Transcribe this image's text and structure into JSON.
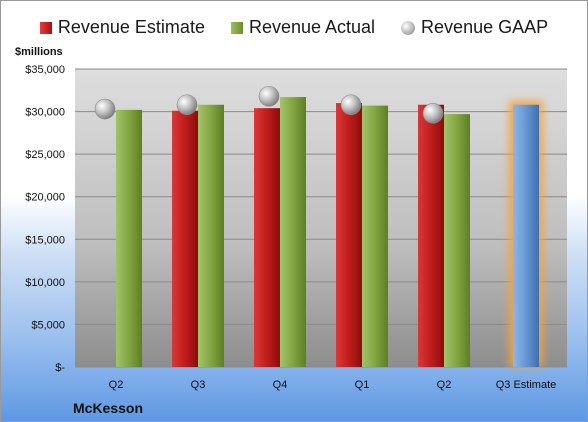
{
  "legend": {
    "estimate": "Revenue Estimate",
    "actual": "Revenue Actual",
    "gaap": "Revenue GAAP"
  },
  "ylabel": "$millions",
  "company": "McKesson",
  "colors": {
    "estimate": "#c41e1e",
    "actual": "#86a845",
    "gaap": "#a9a9a9",
    "projection": "#6a9ad6",
    "projection_glow": "#f4a340"
  },
  "chart_data": {
    "type": "bar",
    "categories": [
      "Q2",
      "Q3",
      "Q4",
      "Q1",
      "Q2",
      "Q3 Estimate"
    ],
    "series": [
      {
        "name": "Revenue Estimate",
        "values": [
          null,
          30100,
          30400,
          31000,
          30800,
          30800
        ]
      },
      {
        "name": "Revenue Actual",
        "values": [
          30200,
          30800,
          31700,
          30700,
          29700,
          null
        ]
      },
      {
        "name": "Revenue GAAP",
        "values": [
          30300,
          30800,
          31800,
          30800,
          29800,
          null
        ]
      }
    ],
    "ylabel": "$millions",
    "ylim": [
      0,
      35000
    ],
    "yticks": [
      0,
      5000,
      10000,
      15000,
      20000,
      25000,
      30000,
      35000
    ],
    "ytick_labels": [
      "$-",
      "$5,000",
      "$10,000",
      "$15,000",
      "$20,000",
      "$25,000",
      "$30,000",
      "$35,000"
    ],
    "grid": true,
    "legend_position": "top"
  }
}
